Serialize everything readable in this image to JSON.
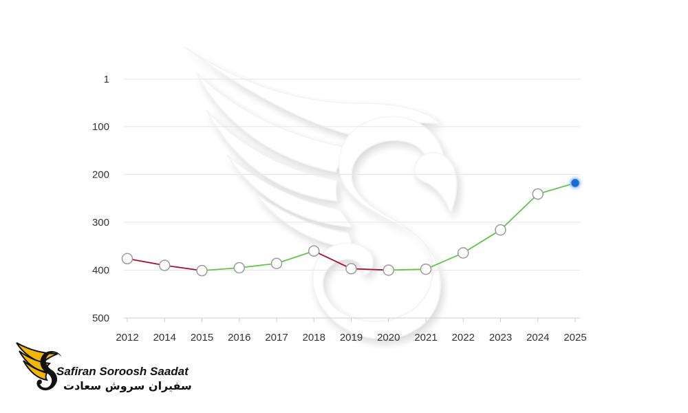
{
  "chart_data": {
    "type": "line",
    "title": "",
    "xlabel": "",
    "ylabel": "",
    "y_reversed": true,
    "ylim": [
      1,
      500
    ],
    "y_ticks": [
      1,
      100,
      200,
      300,
      400,
      500
    ],
    "y_tick_labels": [
      "1",
      "100",
      "200",
      "300",
      "400",
      "500"
    ],
    "categories": [
      "2012",
      "2014",
      "2015",
      "2016",
      "2017",
      "2018",
      "2019",
      "2020",
      "2021",
      "2022",
      "2023",
      "2024",
      "2025"
    ],
    "series": [
      {
        "values": [
          376,
          390,
          401,
          395,
          386,
          360,
          397,
          400,
          398,
          364,
          316,
          241,
          218
        ]
      }
    ],
    "grid": true,
    "legend": "none",
    "colors": {
      "decline": "#a50f2d",
      "rise": "#5fc64a",
      "marker_fill": "#ffffff",
      "marker_stroke": "#9a9a9a",
      "highlight": "#1e6bd1"
    }
  },
  "logo": {
    "name_latin": "Safiran Soroosh Saadat",
    "name_persian": "سفیران سروش سعادت",
    "icon": "winged-s-logo-icon",
    "colors": {
      "wing": "#f2b705",
      "ink": "#111111"
    }
  },
  "watermark": {
    "icon": "winged-s-watermark-icon"
  }
}
